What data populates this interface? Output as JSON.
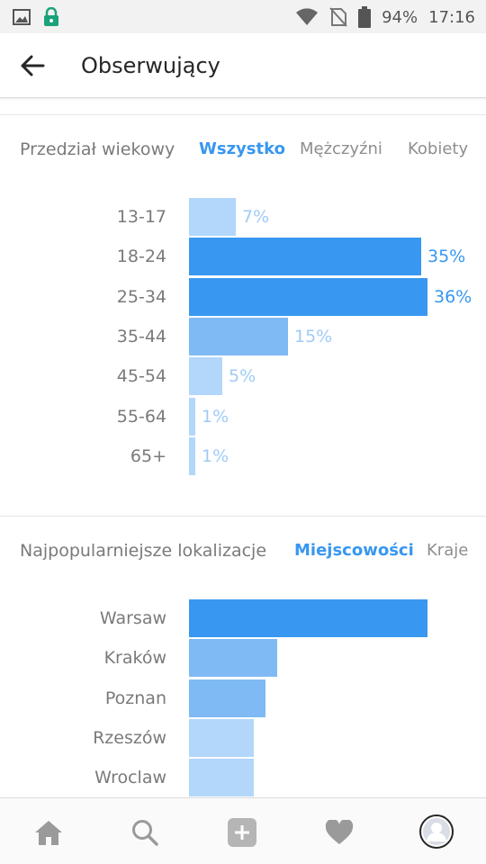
{
  "status_bar": {
    "battery": "94%",
    "time": "17:16"
  },
  "header": {
    "title": "Obserwujący"
  },
  "age_section": {
    "title": "Przedział wiekowy",
    "tabs": [
      "Wszystko",
      "Mężczyźni",
      "Kobiety"
    ],
    "active_tab": "Wszystko"
  },
  "location_section": {
    "title": "Najpopularniejsze lokalizacje",
    "tabs": [
      "Miejscowości",
      "Kraje"
    ],
    "active_tab": "Miejscowości"
  },
  "chart_data": [
    {
      "type": "bar",
      "orientation": "horizontal",
      "title": "Przedział wiekowy",
      "categories": [
        "13-17",
        "18-24",
        "25-34",
        "35-44",
        "45-54",
        "55-64",
        "65+"
      ],
      "values": [
        7,
        35,
        36,
        15,
        5,
        1,
        1
      ],
      "value_labels": [
        "7%",
        "35%",
        "36%",
        "15%",
        "5%",
        "1%",
        "1%"
      ],
      "unit": "%"
    },
    {
      "type": "bar",
      "orientation": "horizontal",
      "title": "Najpopularniejsze lokalizacje",
      "categories": [
        "Warsaw",
        "Kraków",
        "Poznan",
        "Rzeszów",
        "Wroclaw"
      ],
      "values": [
        100,
        37,
        32,
        27,
        27
      ],
      "unit": "relative"
    }
  ],
  "colors": {
    "accent": "#3897f0",
    "bar_dark": "#3897f0",
    "bar_mid": "#7fbaf5",
    "bar_light": "#b3d7fb",
    "label_light": "#9fcbf7"
  },
  "bottom_nav": {
    "icons": [
      "home-icon",
      "search-icon",
      "add-icon",
      "heart-icon",
      "profile-icon"
    ]
  }
}
